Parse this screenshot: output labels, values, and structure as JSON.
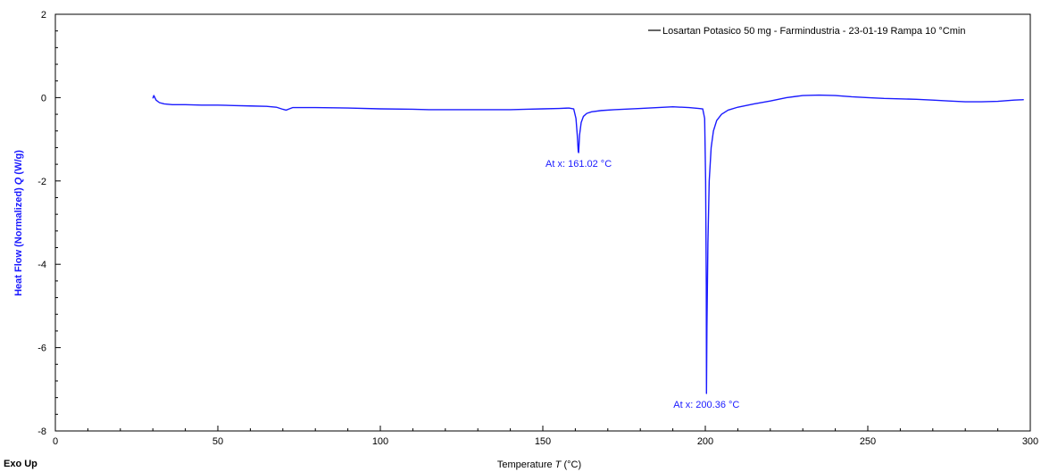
{
  "chart_data": {
    "type": "line",
    "xlabel": "Temperature",
    "xlabel_symbol": "T",
    "xlabel_unit": "(°C)",
    "ylabel": "Heat Flow (Normalized)",
    "ylabel_symbol": "Q",
    "ylabel_unit": "(W/g)",
    "corner_label": "Exo Up",
    "xlim": [
      0,
      300
    ],
    "ylim": [
      -8,
      2
    ],
    "xticks": [
      0,
      50,
      100,
      150,
      200,
      250,
      300
    ],
    "yticks": [
      -8,
      -6,
      -4,
      -2,
      0,
      2
    ],
    "grid": false,
    "legend_position": "top-right",
    "series": [
      {
        "name": "Losartan Potasico 50 mg - Farmindustria - 23-01-19 Rampa 10 °Cmin",
        "color": "#1a1aff",
        "x": [
          30.0,
          30.3,
          31.0,
          32.0,
          33.5,
          36,
          40,
          45,
          50,
          55,
          60,
          65,
          68,
          70,
          71,
          72,
          73,
          75,
          80,
          90,
          100,
          110,
          115,
          120,
          130,
          140,
          145,
          150,
          155,
          158,
          159.5,
          160.2,
          160.6,
          160.9,
          161.02,
          161.3,
          161.8,
          162.5,
          163.5,
          165,
          168,
          172,
          180,
          190,
          195,
          198,
          199.2,
          199.8,
          200.1,
          200.3,
          200.36,
          200.5,
          200.8,
          201.2,
          201.8,
          202.5,
          203.5,
          205,
          207,
          210,
          215,
          220,
          225,
          230,
          235,
          240,
          245,
          250,
          255,
          260,
          265,
          270,
          275,
          280,
          285,
          290,
          295,
          298
        ],
        "y": [
          -0.02,
          0.05,
          -0.06,
          -0.12,
          -0.15,
          -0.17,
          -0.17,
          -0.18,
          -0.18,
          -0.19,
          -0.2,
          -0.21,
          -0.23,
          -0.28,
          -0.3,
          -0.27,
          -0.24,
          -0.24,
          -0.24,
          -0.25,
          -0.27,
          -0.28,
          -0.29,
          -0.29,
          -0.29,
          -0.29,
          -0.28,
          -0.27,
          -0.26,
          -0.25,
          -0.27,
          -0.5,
          -0.9,
          -1.3,
          -1.32,
          -0.9,
          -0.6,
          -0.45,
          -0.38,
          -0.34,
          -0.31,
          -0.29,
          -0.26,
          -0.22,
          -0.24,
          -0.26,
          -0.27,
          -0.5,
          -2.0,
          -4.5,
          -7.1,
          -5.5,
          -3.5,
          -2.0,
          -1.2,
          -0.8,
          -0.55,
          -0.4,
          -0.3,
          -0.23,
          -0.15,
          -0.08,
          0.0,
          0.05,
          0.06,
          0.05,
          0.02,
          0.0,
          -0.02,
          -0.03,
          -0.04,
          -0.06,
          -0.08,
          -0.1,
          -0.1,
          -0.09,
          -0.06,
          -0.05
        ]
      }
    ],
    "annotations": [
      {
        "x": 161.02,
        "y": -1.32,
        "text": "At x: 161.02 °C"
      },
      {
        "x": 200.36,
        "y": -7.1,
        "text": "At x: 200.36 °C"
      }
    ]
  }
}
